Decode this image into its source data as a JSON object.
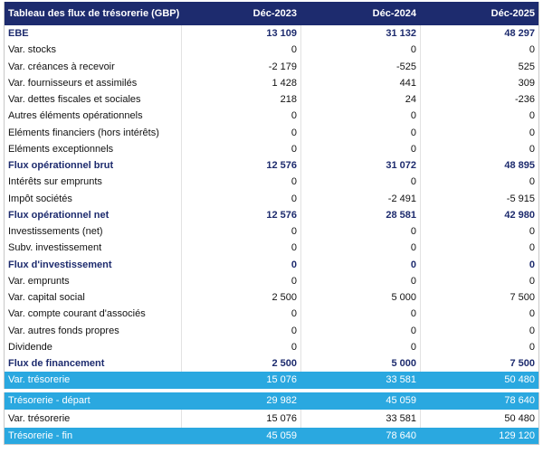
{
  "table": {
    "header": [
      "Tableau des flux de trésorerie (GBP)",
      "Déc-2023",
      "Déc-2024",
      "Déc-2025"
    ],
    "rows": [
      [
        "EBE",
        "13 109",
        "31 132",
        "48 297"
      ],
      [
        "Var. stocks",
        "0",
        "0",
        "0"
      ],
      [
        "Var. créances à recevoir",
        "-2 179",
        "-525",
        "525"
      ],
      [
        "Var. fournisseurs et assimilés",
        "1 428",
        "441",
        "309"
      ],
      [
        "Var. dettes fiscales et sociales",
        "218",
        "24",
        "-236"
      ],
      [
        "Autres éléments opérationnels",
        "0",
        "0",
        "0"
      ],
      [
        "Eléments financiers (hors intérêts)",
        "0",
        "0",
        "0"
      ],
      [
        "Eléments exceptionnels",
        "0",
        "0",
        "0"
      ],
      [
        "Flux opérationnel brut",
        "12 576",
        "31 072",
        "48 895"
      ],
      [
        "Intérêts sur emprunts",
        "0",
        "0",
        "0"
      ],
      [
        "Impôt sociétés",
        "0",
        "-2 491",
        "-5 915"
      ],
      [
        "Flux opérationnel net",
        "12 576",
        "28 581",
        "42 980"
      ],
      [
        "Investissements (net)",
        "0",
        "0",
        "0"
      ],
      [
        "Subv. investissement",
        "0",
        "0",
        "0"
      ],
      [
        "Flux d'investissement",
        "0",
        "0",
        "0"
      ],
      [
        "Var. emprunts",
        "0",
        "0",
        "0"
      ],
      [
        "Var. capital social",
        "2 500",
        "5 000",
        "7 500"
      ],
      [
        "Var. compte courant d'associés",
        "0",
        "0",
        "0"
      ],
      [
        "Var. autres fonds propres",
        "0",
        "0",
        "0"
      ],
      [
        "Dividende",
        "0",
        "0",
        "0"
      ],
      [
        "Flux de financement",
        "2 500",
        "5 000",
        "7 500"
      ],
      [
        "Var. trésorerie",
        "15 076",
        "33 581",
        "50 480"
      ]
    ],
    "summary": [
      [
        "Trésorerie - départ",
        "29 982",
        "45 059",
        "78 640"
      ],
      [
        "Var. trésorerie",
        "15 076",
        "33 581",
        "50 480"
      ],
      [
        "Trésorerie - fin",
        "45 059",
        "78 640",
        "129 120"
      ]
    ]
  }
}
